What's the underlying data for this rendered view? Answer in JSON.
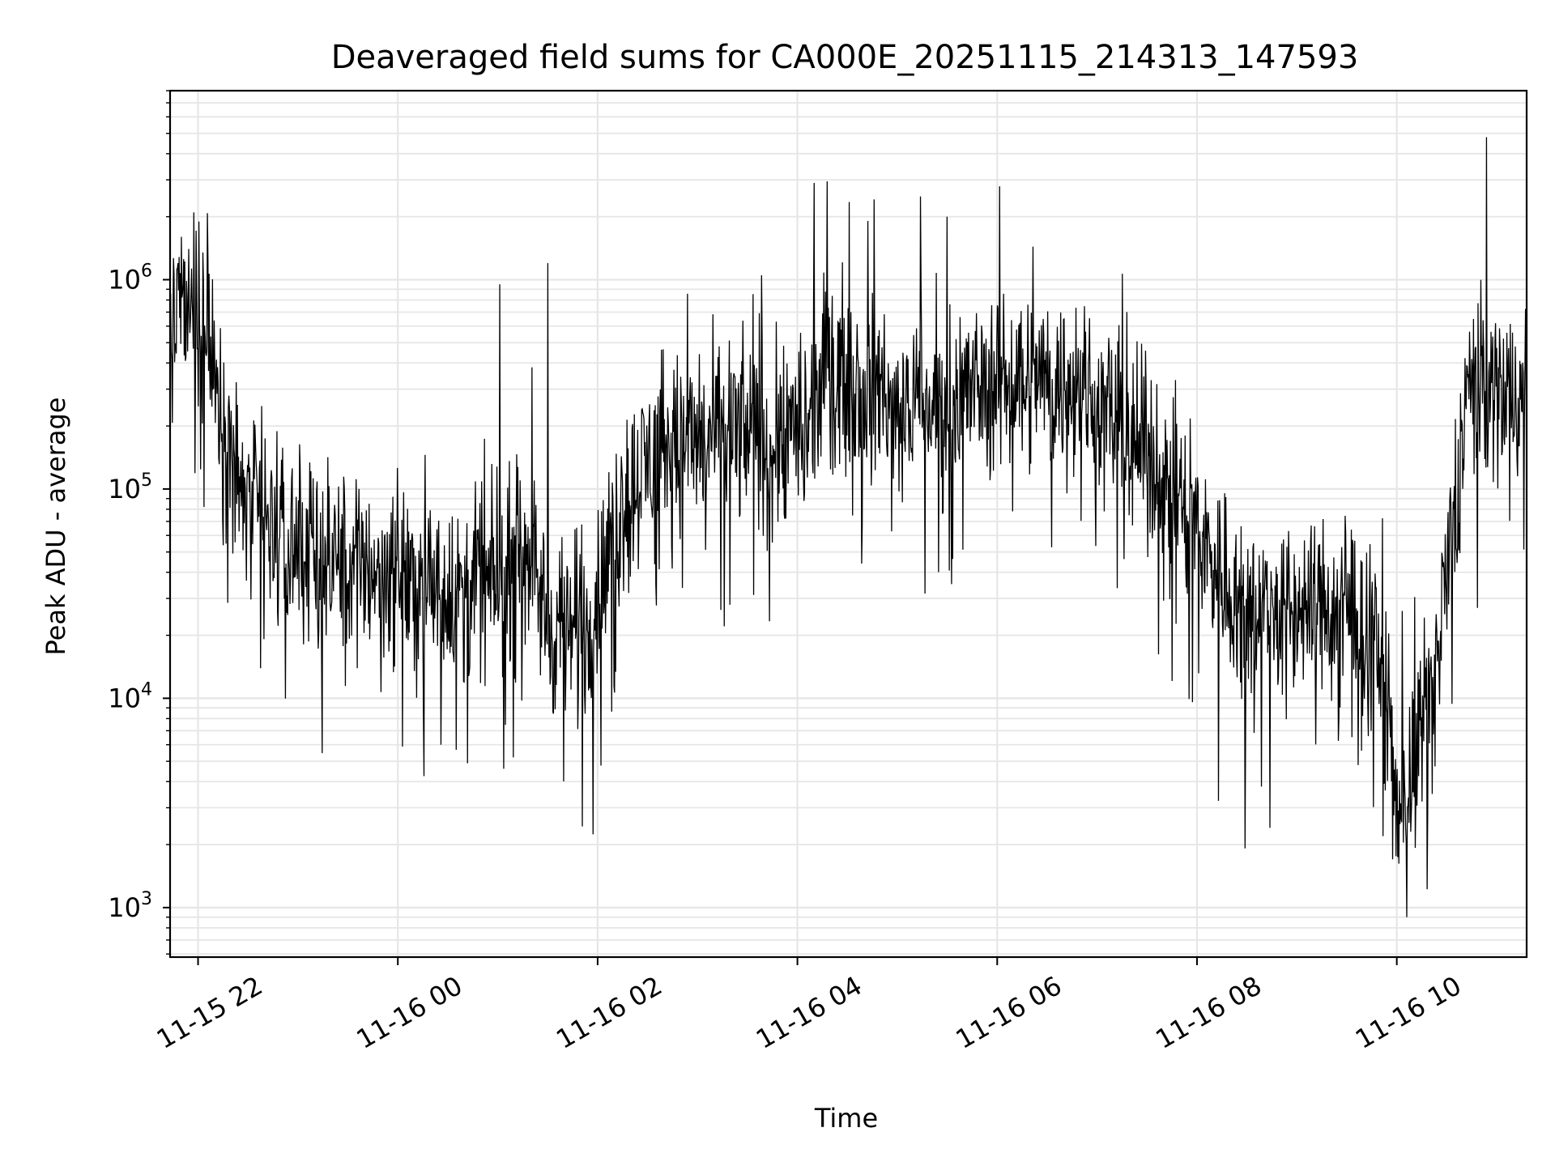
{
  "chart_data": {
    "type": "line",
    "title": "Deaveraged field sums for CA000E_20251115_214313_147593",
    "xlabel": "Time",
    "ylabel": "Peak ADU - average",
    "yscale": "log",
    "ylim": [
      580,
      8000000
    ],
    "xlim_hours": [
      -0.28,
      13.3
    ],
    "grid": true,
    "line_color": "#000000",
    "grid_color": "#e6e6e6",
    "x_ticks": [
      {
        "label": "11-15 22",
        "hours": 0
      },
      {
        "label": "11-16 00",
        "hours": 2
      },
      {
        "label": "11-16 02",
        "hours": 4
      },
      {
        "label": "11-16 04",
        "hours": 6
      },
      {
        "label": "11-16 06",
        "hours": 8
      },
      {
        "label": "11-16 08",
        "hours": 10
      },
      {
        "label": "11-16 10",
        "hours": 12
      }
    ],
    "y_ticks": [
      {
        "base": "10",
        "exp": "3",
        "value": 1000
      },
      {
        "base": "10",
        "exp": "4",
        "value": 10000
      },
      {
        "base": "10",
        "exp": "5",
        "value": 100000
      },
      {
        "base": "10",
        "exp": "6",
        "value": 1000000
      }
    ],
    "trend": {
      "hours_since_11-15_22": [
        -0.28,
        0.0,
        0.2,
        0.4,
        0.7,
        1.0,
        1.5,
        2.0,
        2.5,
        3.0,
        3.3,
        3.5,
        3.7,
        3.9,
        4.1,
        4.3,
        4.6,
        5.0,
        5.4,
        5.8,
        6.1,
        6.3,
        6.7,
        7.0,
        7.5,
        8.0,
        8.5,
        9.0,
        9.3,
        9.7,
        10.0,
        10.4,
        10.8,
        11.2,
        11.6,
        11.9,
        12.0,
        12.2,
        12.5,
        12.7,
        13.0,
        13.3
      ],
      "values": [
        600000,
        700000,
        300000,
        100000,
        60000,
        50000,
        45000,
        40000,
        32000,
        35000,
        60000,
        22000,
        20000,
        22000,
        45000,
        100000,
        150000,
        170000,
        180000,
        190000,
        180000,
        400000,
        320000,
        250000,
        250000,
        350000,
        340000,
        250000,
        190000,
        110000,
        60000,
        30000,
        25000,
        28000,
        25000,
        12000,
        3000,
        5000,
        35000,
        300000,
        300000,
        250000
      ]
    },
    "spikes": {
      "hours": [
        -0.2,
        0.05,
        0.1,
        3.02,
        3.5,
        6.17,
        6.3,
        6.52,
        7.23,
        7.5,
        11.96,
        12.1,
        12.9
      ],
      "values": [
        1200000,
        1350000,
        1250000,
        950000,
        1200000,
        2900000,
        2950000,
        2350000,
        2500000,
        2000000,
        1700,
        900,
        4800000
      ]
    }
  }
}
